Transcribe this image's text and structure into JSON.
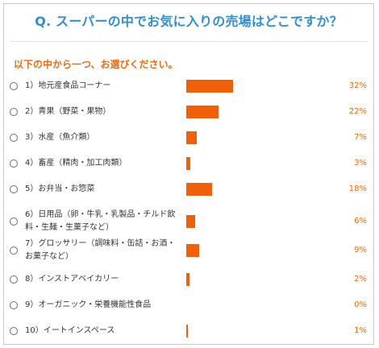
{
  "survey": {
    "question": "Q. スーパーの中でお気に入りの売場はどこですか？",
    "instruction": "以下の中から一つ、お選びください。",
    "accent_color": "#f05f0a",
    "title_color": "#2f8fd0",
    "options": [
      {
        "label": "1）地元産食品コーナー",
        "percent_label": "32%",
        "percent": 32
      },
      {
        "label": "2）青果（野菜・果物）",
        "percent_label": "22%",
        "percent": 22
      },
      {
        "label": "3）水産（魚介類）",
        "percent_label": "7%",
        "percent": 7
      },
      {
        "label": "4）畜産（精肉・加工肉類）",
        "percent_label": "3%",
        "percent": 3
      },
      {
        "label": "5）お弁当・お惣菜",
        "percent_label": "18%",
        "percent": 18
      },
      {
        "label": "6）日用品（卵・牛乳・乳製品・チルド飲料・生麺・生菓子など）",
        "percent_label": "6%",
        "percent": 6
      },
      {
        "label": "7）グロッサリー（調味料・缶詰・お酒・お菓子など）",
        "percent_label": "9%",
        "percent": 9
      },
      {
        "label": "8）インストアベイカリー",
        "percent_label": "2%",
        "percent": 2
      },
      {
        "label": "9）オーガニック・栄養機能性食品",
        "percent_label": "0%",
        "percent": 0
      },
      {
        "label": "10）イートインスペース",
        "percent_label": "1%",
        "percent": 1
      }
    ]
  }
}
